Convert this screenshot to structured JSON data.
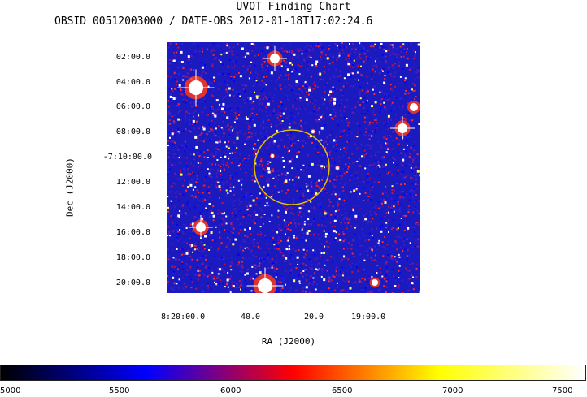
{
  "header": {
    "title": "UVOT Finding Chart",
    "subtitle": "OBSID 00512003000 / DATE-OBS 2012-01-18T17:02:24.6"
  },
  "axes": {
    "ylabel": "Dec (J2000)",
    "xlabel": "RA (J2000)",
    "dec_ticks": [
      "02:00.0",
      "04:00.0",
      "06:00.0",
      "08:00.0",
      "-7:10:00.0",
      "12:00.0",
      "14:00.0",
      "16:00.0",
      "18:00.0",
      "20:00.0"
    ],
    "ra_ticks": [
      "8:20:00.0",
      "40.0",
      "20.0",
      "19:00.0"
    ]
  },
  "colorbar": {
    "labels": [
      "5000",
      "5500",
      "6000",
      "6500",
      "7000",
      "7500"
    ],
    "colors": [
      "#000000",
      "#0000ff",
      "#ff0000",
      "#ffff00",
      "#ffffff"
    ]
  },
  "image": {
    "background_color": "#1a1abf",
    "circle_color": "#e8c000"
  }
}
